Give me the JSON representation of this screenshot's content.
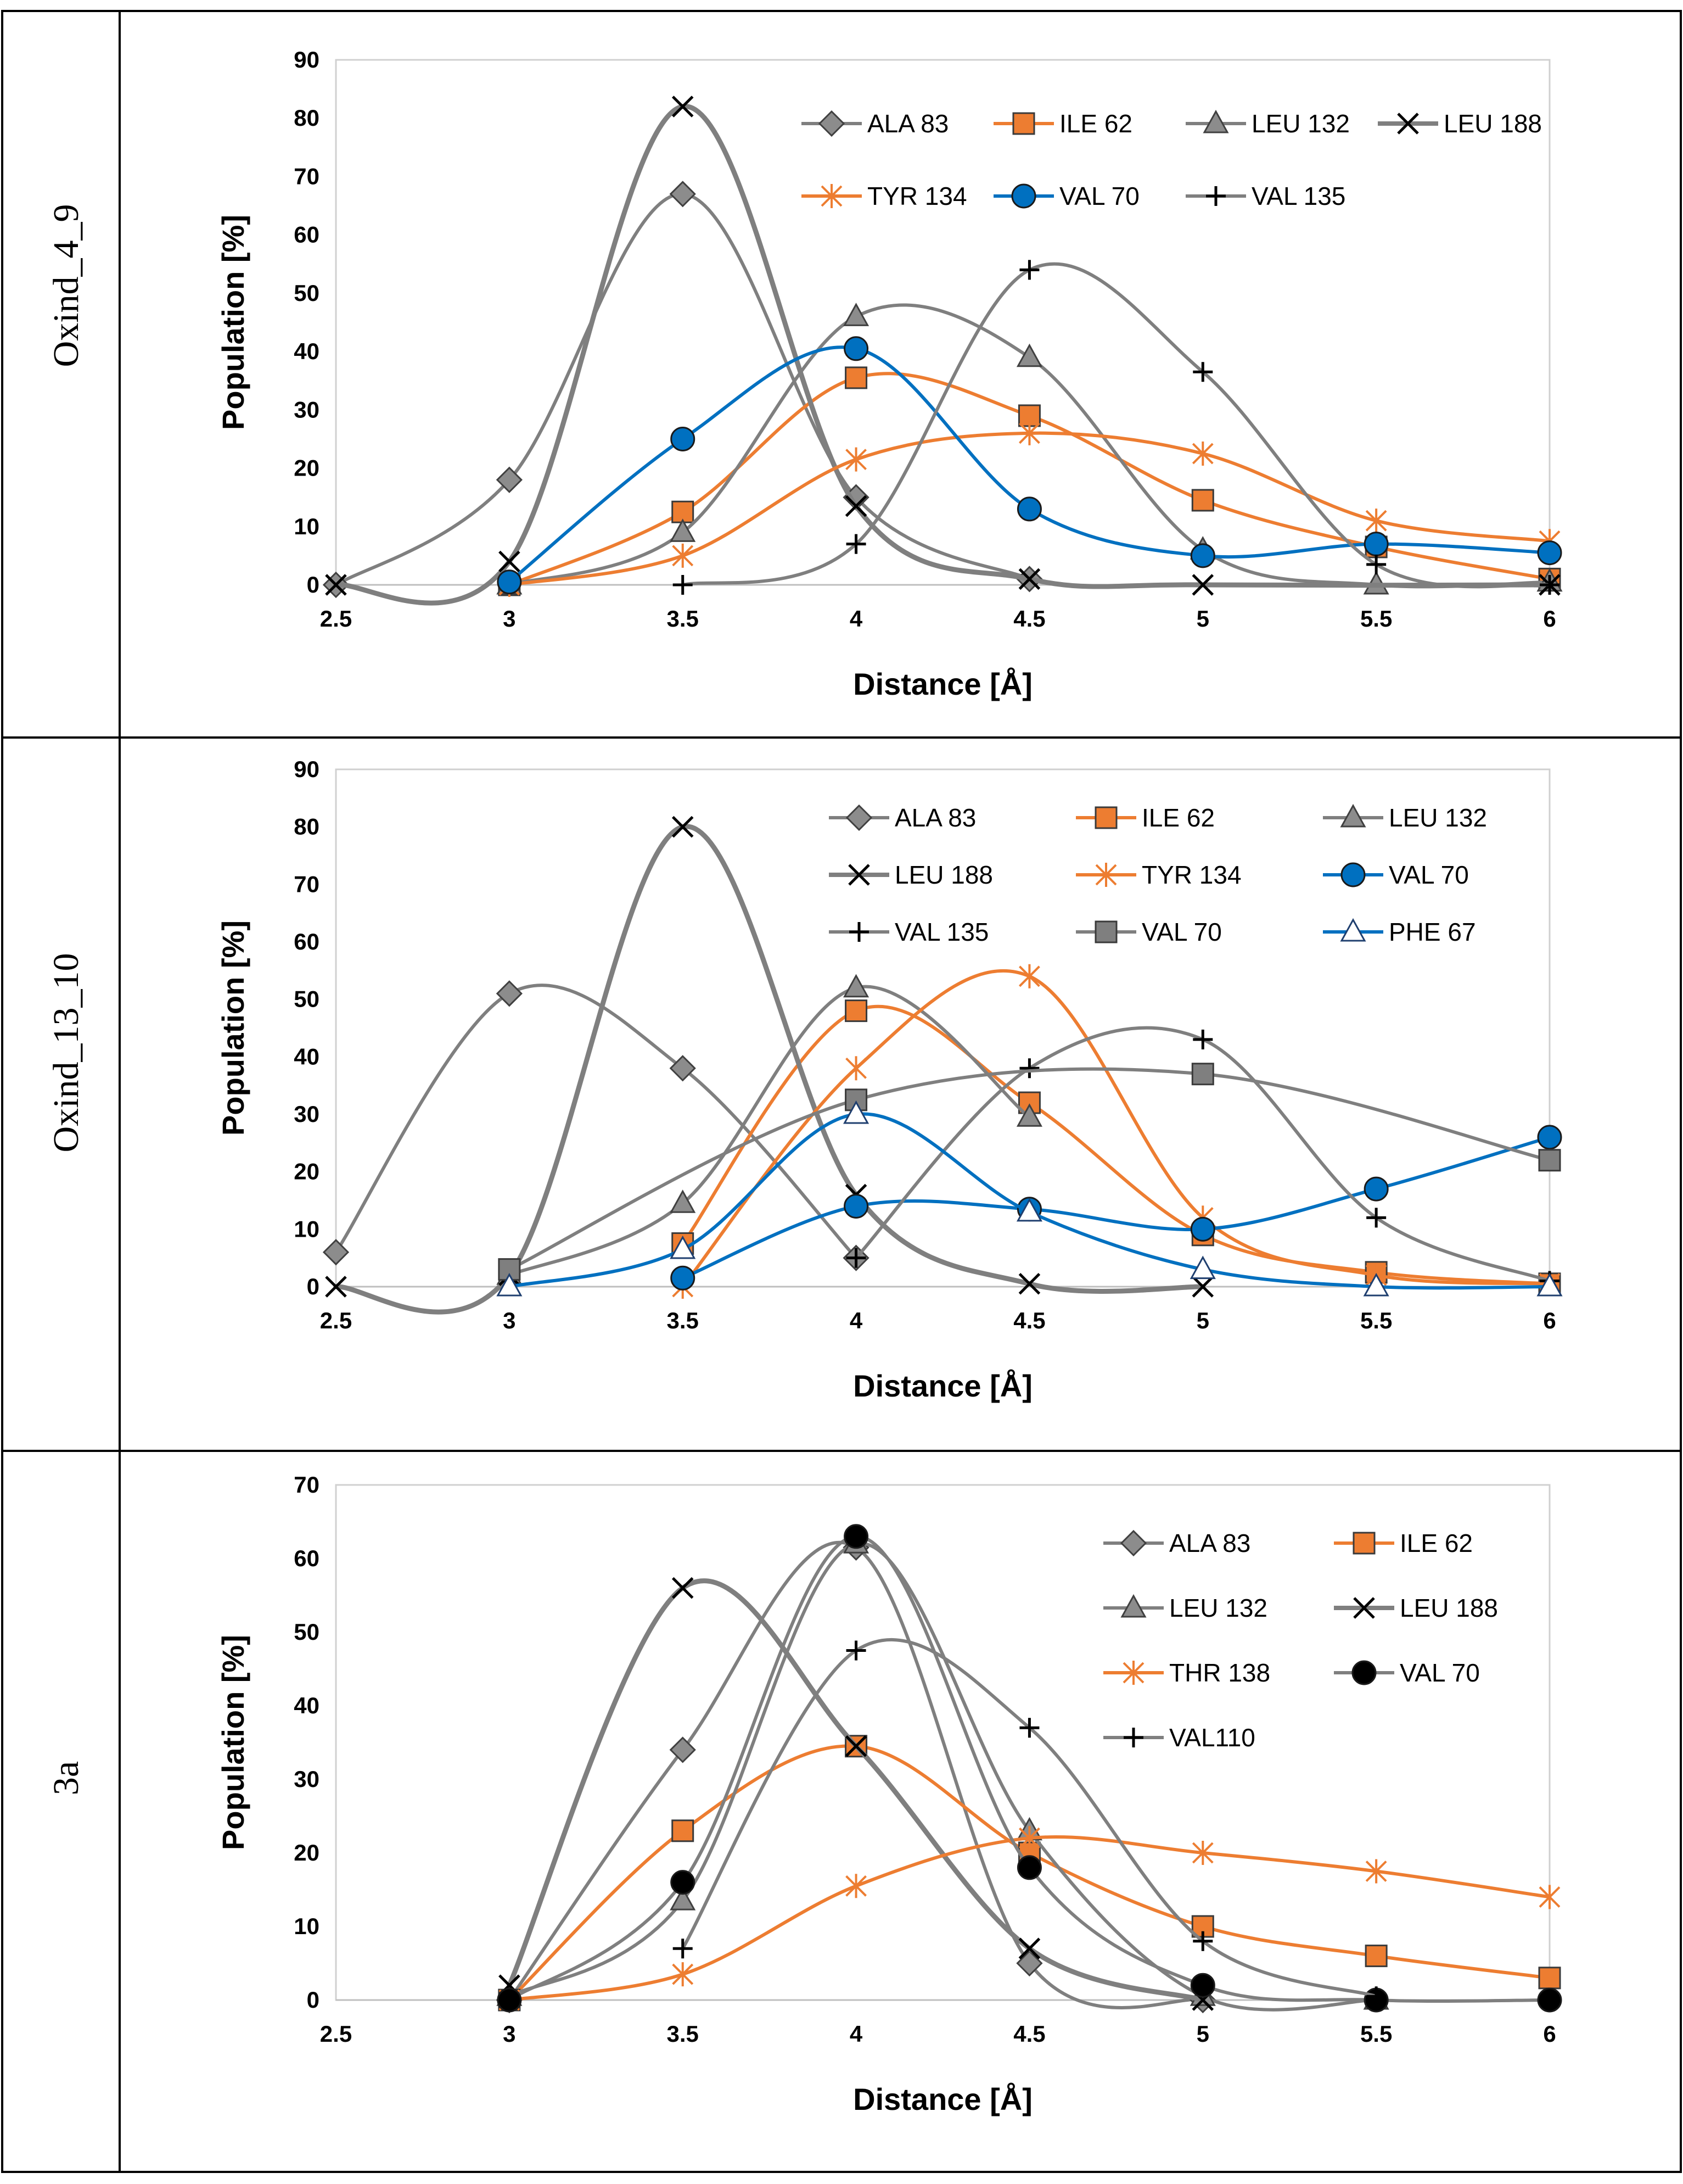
{
  "row_labels": [
    "Oxind_4_9",
    "Oxind_13_10",
    "3a"
  ],
  "colors": {
    "gray": "#7f7f7f",
    "orange": "#ed7d31",
    "blue": "#0070c0",
    "black": "#000000"
  },
  "chart_data": [
    {
      "type": "line",
      "panel": "Oxind_4_9",
      "xlabel": "Distance [Å]",
      "ylabel": "Population [%]",
      "x": [
        2.5,
        3,
        3.5,
        4,
        4.5,
        5,
        5.5,
        6
      ],
      "xticks": [
        "2.5",
        "3",
        "3.5",
        "4",
        "4.5",
        "5",
        "5.5",
        "6"
      ],
      "ylim": [
        0,
        90
      ],
      "yticks": [
        "0",
        "10",
        "20",
        "30",
        "40",
        "50",
        "60",
        "70",
        "80",
        "90"
      ],
      "legend_cols": 4,
      "series": [
        {
          "name": "ALA 83",
          "marker": "diamond",
          "color": "gray",
          "values": [
            0,
            18,
            67,
            15,
            1,
            null,
            null,
            null
          ]
        },
        {
          "name": "ILE 62",
          "marker": "square",
          "color": "orange",
          "values": [
            null,
            0,
            12.5,
            35.5,
            29,
            14.5,
            6.5,
            1
          ]
        },
        {
          "name": "LEU 132",
          "marker": "triangle",
          "color": "gray",
          "values": [
            null,
            0,
            9,
            46,
            39,
            6,
            0,
            0.5
          ]
        },
        {
          "name": "LEU 188",
          "marker": "x",
          "color": "gray",
          "values": [
            0,
            4,
            82,
            13.5,
            1,
            0,
            null,
            0
          ]
        },
        {
          "name": "TYR 134",
          "marker": "star",
          "color": "orange",
          "values": [
            null,
            0,
            5,
            21.5,
            26,
            22.5,
            11,
            7.5
          ]
        },
        {
          "name": "VAL 70",
          "marker": "circle",
          "color": "blue",
          "values": [
            null,
            0.5,
            25,
            40.5,
            13,
            5,
            7,
            5.5
          ]
        },
        {
          "name": "VAL 135",
          "marker": "plus",
          "color": "black",
          "values": [
            null,
            null,
            0,
            7,
            54,
            36.5,
            3.5,
            0
          ]
        }
      ]
    },
    {
      "type": "line",
      "panel": "Oxind_13_10",
      "xlabel": "Distance [Å]",
      "ylabel": "Population [%]",
      "x": [
        2.5,
        3,
        3.5,
        4,
        4.5,
        5,
        5.5,
        6
      ],
      "xticks": [
        "2.5",
        "3",
        "3.5",
        "4",
        "4.5",
        "5",
        "5.5",
        "6"
      ],
      "ylim": [
        0,
        90
      ],
      "yticks": [
        "0",
        "10",
        "20",
        "30",
        "40",
        "50",
        "60",
        "70",
        "80",
        "90"
      ],
      "legend_cols": 3,
      "series": [
        {
          "name": "ALA 83",
          "marker": "diamond",
          "color": "gray",
          "values": [
            6,
            51,
            38,
            5,
            null,
            null,
            null,
            null
          ]
        },
        {
          "name": "ILE 62",
          "marker": "square",
          "color": "orange",
          "values": [
            null,
            null,
            7.5,
            48,
            32,
            9,
            2.5,
            0.5
          ]
        },
        {
          "name": "LEU 132",
          "marker": "triangle",
          "color": "gray",
          "values": [
            null,
            2,
            14.5,
            52,
            29.5,
            null,
            null,
            null
          ]
        },
        {
          "name": "LEU 188",
          "marker": "x",
          "color": "gray",
          "values": [
            0,
            2,
            80,
            16,
            0.5,
            0,
            null,
            null
          ]
        },
        {
          "name": "TYR 134",
          "marker": "star",
          "color": "orange",
          "values": [
            null,
            null,
            0,
            38,
            54,
            12,
            2,
            0.5
          ]
        },
        {
          "name": "VAL 70",
          "marker": "circle",
          "color": "blue",
          "values": [
            null,
            null,
            1.5,
            14,
            13.5,
            10,
            17,
            26
          ]
        },
        {
          "name": "VAL 135",
          "marker": "plus",
          "color": "black",
          "values": [
            null,
            null,
            null,
            5,
            38,
            43,
            12,
            1
          ]
        },
        {
          "name": "VAL 70",
          "marker": "square",
          "color": "gray",
          "values": [
            null,
            3,
            null,
            32.5,
            null,
            37,
            null,
            22
          ]
        },
        {
          "name": "PHE 67",
          "marker": "triangle-open",
          "color": "blue",
          "values": [
            null,
            0,
            6.5,
            30,
            13,
            3,
            0,
            0
          ]
        }
      ]
    },
    {
      "type": "line",
      "panel": "3a",
      "xlabel": "Distance [Å]",
      "ylabel": "Population [%]",
      "x": [
        2.5,
        3,
        3.5,
        4,
        4.5,
        5,
        5.5,
        6
      ],
      "xticks": [
        "2.5",
        "3",
        "3.5",
        "4",
        "4.5",
        "5",
        "5.5",
        "6"
      ],
      "ylim": [
        0,
        70
      ],
      "yticks": [
        "0",
        "10",
        "20",
        "30",
        "40",
        "50",
        "60",
        "70"
      ],
      "legend_cols": 2,
      "series": [
        {
          "name": "ALA 83",
          "marker": "diamond",
          "color": "gray",
          "values": [
            null,
            0,
            34,
            61.5,
            5,
            0,
            null,
            null
          ]
        },
        {
          "name": "ILE 62",
          "marker": "square",
          "color": "orange",
          "values": [
            null,
            0,
            23,
            34.5,
            20,
            10,
            6,
            3
          ]
        },
        {
          "name": "LEU 132",
          "marker": "triangle",
          "color": "gray",
          "values": [
            null,
            0.5,
            13.5,
            62,
            23,
            0.5,
            0,
            null
          ]
        },
        {
          "name": "LEU 188",
          "marker": "x",
          "color": "gray",
          "values": [
            null,
            2,
            56,
            34.5,
            7,
            0,
            null,
            null
          ]
        },
        {
          "name": "THR 138",
          "marker": "star",
          "color": "orange",
          "values": [
            null,
            0,
            3.5,
            15.5,
            22,
            20,
            17.5,
            14
          ]
        },
        {
          "name": "VAL 70",
          "marker": "circle",
          "color": "black",
          "values": [
            null,
            0,
            16,
            63,
            18,
            2,
            0,
            0
          ]
        },
        {
          "name": "VAL110",
          "marker": "plus",
          "color": "black",
          "values": [
            null,
            null,
            7,
            47.5,
            37,
            8,
            0.5,
            null
          ]
        }
      ]
    }
  ]
}
